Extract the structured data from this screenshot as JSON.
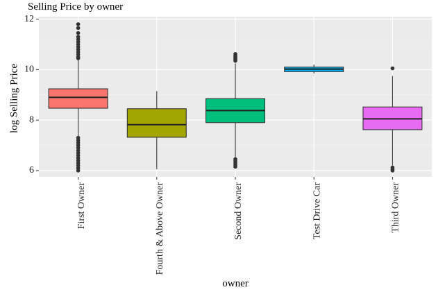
{
  "chart_data": {
    "type": "box",
    "title": "Selling Price by owner",
    "xlabel": "owner",
    "ylabel": "log Selling Price",
    "ylim": [
      5.75,
      12.1
    ],
    "yticks": [
      6,
      8,
      10,
      12
    ],
    "grid": true,
    "legend": "none",
    "categories": [
      "First Owner",
      "Fourth & Above Owner",
      "Second Owner",
      "Test Drive Car",
      "Third Owner"
    ],
    "boxes": [
      {
        "category": "First Owner",
        "color": "#f8766d",
        "whisker_low": 7.35,
        "q1": 8.47,
        "median": 8.9,
        "q3": 9.24,
        "whisker_high": 10.4,
        "outliers": [
          11.8,
          11.65,
          11.45,
          11.3,
          11.2,
          11.1,
          11.0,
          10.9,
          10.8,
          10.7,
          10.6,
          10.5,
          10.45,
          7.3,
          7.2,
          7.1,
          7.0,
          6.9,
          6.8,
          6.7,
          6.6,
          6.5,
          6.4,
          6.3,
          6.2,
          6.1,
          6.0
        ]
      },
      {
        "category": "Fourth & Above Owner",
        "color": "#a3a500",
        "whisker_low": 6.05,
        "q1": 7.32,
        "median": 7.82,
        "q3": 8.45,
        "whisker_high": 9.15,
        "outliers": []
      },
      {
        "category": "Second Owner",
        "color": "#00bf7d",
        "whisker_low": 6.5,
        "q1": 7.9,
        "median": 8.38,
        "q3": 8.85,
        "whisker_high": 10.25,
        "outliers": [
          10.62,
          10.55,
          10.5,
          10.45,
          10.4,
          10.35,
          6.45,
          6.38,
          6.3,
          6.22,
          6.15
        ]
      },
      {
        "category": "Test Drive Car",
        "color": "#00b0f6",
        "whisker_low": 9.85,
        "q1": 9.92,
        "median": 10.02,
        "q3": 10.1,
        "whisker_high": 10.2,
        "outliers": []
      },
      {
        "category": "Third Owner",
        "color": "#e76bf3",
        "whisker_low": 6.2,
        "q1": 7.62,
        "median": 8.05,
        "q3": 8.52,
        "whisker_high": 9.75,
        "outliers": [
          10.05,
          6.12,
          6.05,
          6.0
        ]
      }
    ]
  }
}
